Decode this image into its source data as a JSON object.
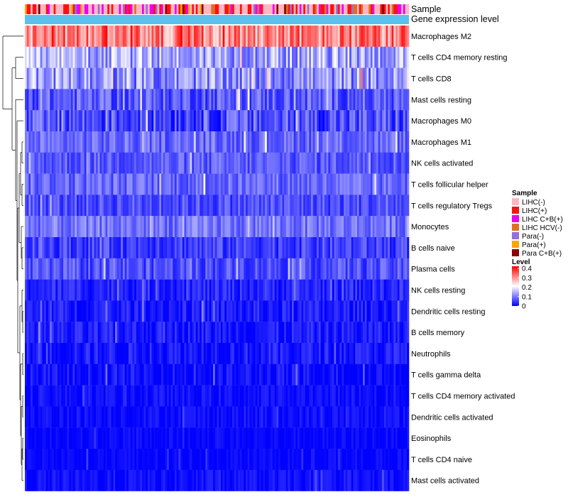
{
  "chart_data": {
    "type": "heatmap",
    "annotations": {
      "sample_label": "Sample",
      "expression_label": "Gene expression level",
      "expression_color": "#5bc0eb"
    },
    "rows": [
      {
        "name": "Macrophages M2",
        "mean": 0.3,
        "spread": 0.08
      },
      {
        "name": "T cells CD4 memory resting",
        "mean": 0.13,
        "spread": 0.07
      },
      {
        "name": "T cells CD8",
        "mean": 0.11,
        "spread": 0.07
      },
      {
        "name": "Mast cells resting",
        "mean": 0.07,
        "spread": 0.05
      },
      {
        "name": "Macrophages M0",
        "mean": 0.06,
        "spread": 0.06
      },
      {
        "name": "Macrophages M1",
        "mean": 0.08,
        "spread": 0.04
      },
      {
        "name": "NK cells activated",
        "mean": 0.07,
        "spread": 0.04
      },
      {
        "name": "T cells follicular helper",
        "mean": 0.08,
        "spread": 0.04
      },
      {
        "name": "T cells regulatory  Tregs",
        "mean": 0.06,
        "spread": 0.04
      },
      {
        "name": "Monocytes",
        "mean": 0.09,
        "spread": 0.04
      },
      {
        "name": "B cells naive",
        "mean": 0.05,
        "spread": 0.04
      },
      {
        "name": "Plasma cells",
        "mean": 0.06,
        "spread": 0.04
      },
      {
        "name": "NK cells resting",
        "mean": 0.03,
        "spread": 0.03
      },
      {
        "name": "Dendritic cells resting",
        "mean": 0.02,
        "spread": 0.03
      },
      {
        "name": "B cells memory",
        "mean": 0.02,
        "spread": 0.03
      },
      {
        "name": "Neutrophils",
        "mean": 0.02,
        "spread": 0.03
      },
      {
        "name": "T cells gamma delta",
        "mean": 0.01,
        "spread": 0.03
      },
      {
        "name": "T cells CD4 memory activated",
        "mean": 0.01,
        "spread": 0.02
      },
      {
        "name": "Dendritic cells activated",
        "mean": 0.01,
        "spread": 0.02
      },
      {
        "name": "Eosinophils",
        "mean": 0.005,
        "spread": 0.015
      },
      {
        "name": "T cells CD4 naive",
        "mean": 0.005,
        "spread": 0.015
      },
      {
        "name": "Mast cells activated",
        "mean": 0.01,
        "spread": 0.02
      }
    ],
    "n_samples": 200,
    "value_range": [
      0,
      0.4
    ],
    "sample_legend": {
      "title": "Sample",
      "entries": [
        {
          "label": "LIHC(-)",
          "color": "#ffb6c1"
        },
        {
          "label": "LIHC(+)",
          "color": "#ff1010"
        },
        {
          "label": "LIHC C+B(+)",
          "color": "#ee00ee"
        },
        {
          "label": "LIHC HCV(-)",
          "color": "#e07020"
        },
        {
          "label": "Para(-)",
          "color": "#9370db"
        },
        {
          "label": "Para(+)",
          "color": "#ffa500"
        },
        {
          "label": "Para C+B(+)",
          "color": "#8b0000"
        }
      ]
    },
    "level_legend": {
      "title": "Level",
      "ticks": [
        "0.4",
        "0.3",
        "0.2",
        "0.1",
        "0"
      ],
      "colors": [
        "#0000ff",
        "#ffffff",
        "#ff0000"
      ]
    }
  }
}
